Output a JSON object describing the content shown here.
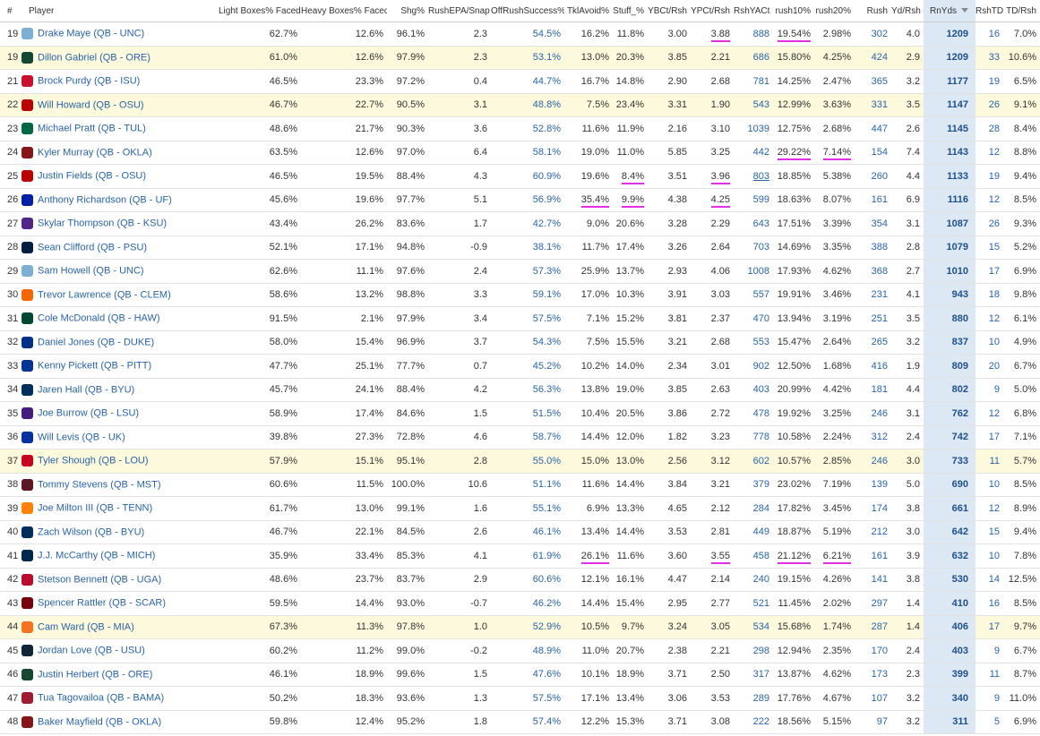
{
  "table": {
    "columns": [
      "#",
      "Player",
      "Light Boxes% Faced",
      "Heavy Boxes% Faced",
      "Shg%",
      "RushEPA/Snap",
      "OffRushSuccess%",
      "TklAvoid%",
      "Stuff_%",
      "YBCt/Rsh",
      "YPCt/Rsh",
      "RshYACt",
      "rush10%",
      "rush20%",
      "Rush",
      "Yd/Rsh",
      "RnYds",
      "RshTD",
      "TD/Rsh"
    ],
    "rows": [
      [
        "19",
        "Drake Maye (QB - UNC)",
        "62.7%",
        "12.6%",
        "96.1%",
        "2.3",
        "54.5%",
        "16.2%",
        "11.8%",
        "3.00",
        "3.88",
        "888",
        "19.54%",
        "2.98%",
        "302",
        "4.0",
        "1209",
        "16",
        "7.0%"
      ],
      [
        "19",
        "Dillon Gabriel (QB - ORE)",
        "61.0%",
        "12.6%",
        "97.9%",
        "2.3",
        "53.1%",
        "13.0%",
        "20.3%",
        "3.85",
        "2.21",
        "686",
        "15.80%",
        "4.25%",
        "424",
        "2.9",
        "1209",
        "33",
        "10.6%"
      ],
      [
        "21",
        "Brock Purdy (QB - ISU)",
        "46.5%",
        "23.3%",
        "97.2%",
        "0.4",
        "44.7%",
        "16.7%",
        "14.8%",
        "2.90",
        "2.68",
        "781",
        "14.25%",
        "2.47%",
        "365",
        "3.2",
        "1177",
        "19",
        "6.5%"
      ],
      [
        "22",
        "Will Howard (QB - OSU)",
        "46.7%",
        "22.7%",
        "90.5%",
        "3.1",
        "48.8%",
        "7.5%",
        "23.4%",
        "3.31",
        "1.90",
        "543",
        "12.99%",
        "3.63%",
        "331",
        "3.5",
        "1147",
        "26",
        "9.1%"
      ],
      [
        "23",
        "Michael Pratt (QB - TUL)",
        "48.6%",
        "21.7%",
        "90.3%",
        "3.6",
        "52.8%",
        "11.6%",
        "11.9%",
        "2.16",
        "3.10",
        "1039",
        "12.75%",
        "2.68%",
        "447",
        "2.6",
        "1145",
        "28",
        "8.4%"
      ],
      [
        "24",
        "Kyler Murray (QB - OKLA)",
        "63.5%",
        "12.6%",
        "97.0%",
        "6.4",
        "58.1%",
        "19.0%",
        "11.0%",
        "5.85",
        "3.25",
        "442",
        "29.22%",
        "7.14%",
        "154",
        "7.4",
        "1143",
        "12",
        "8.8%"
      ],
      [
        "25",
        "Justin Fields (QB - OSU)",
        "46.5%",
        "19.5%",
        "88.4%",
        "4.3",
        "60.9%",
        "19.6%",
        "8.4%",
        "3.51",
        "3.96",
        "803",
        "18.85%",
        "5.38%",
        "260",
        "4.4",
        "1133",
        "19",
        "9.4%"
      ],
      [
        "26",
        "Anthony Richardson (QB - UF)",
        "45.6%",
        "19.6%",
        "97.7%",
        "5.1",
        "56.9%",
        "35.4%",
        "9.9%",
        "4.38",
        "4.25",
        "599",
        "18.63%",
        "8.07%",
        "161",
        "6.9",
        "1116",
        "12",
        "8.5%"
      ],
      [
        "27",
        "Skylar Thompson (QB - KSU)",
        "43.4%",
        "26.2%",
        "83.6%",
        "1.7",
        "42.7%",
        "9.0%",
        "20.6%",
        "3.28",
        "2.29",
        "643",
        "17.51%",
        "3.39%",
        "354",
        "3.1",
        "1087",
        "26",
        "9.3%"
      ],
      [
        "28",
        "Sean Clifford (QB - PSU)",
        "52.1%",
        "17.1%",
        "94.8%",
        "-0.9",
        "38.1%",
        "11.7%",
        "17.4%",
        "3.26",
        "2.64",
        "703",
        "14.69%",
        "3.35%",
        "388",
        "2.8",
        "1079",
        "15",
        "5.2%"
      ],
      [
        "29",
        "Sam Howell (QB - UNC)",
        "62.6%",
        "11.1%",
        "97.6%",
        "2.4",
        "57.3%",
        "25.9%",
        "13.7%",
        "2.93",
        "4.06",
        "1008",
        "17.93%",
        "4.62%",
        "368",
        "2.7",
        "1010",
        "17",
        "6.9%"
      ],
      [
        "30",
        "Trevor Lawrence (QB - CLEM)",
        "58.6%",
        "13.2%",
        "98.8%",
        "3.3",
        "59.1%",
        "17.0%",
        "10.3%",
        "3.91",
        "3.03",
        "557",
        "19.91%",
        "3.46%",
        "231",
        "4.1",
        "943",
        "18",
        "9.8%"
      ],
      [
        "31",
        "Cole McDonald (QB - HAW)",
        "91.5%",
        "2.1%",
        "97.9%",
        "3.4",
        "57.5%",
        "7.1%",
        "15.2%",
        "3.81",
        "2.37",
        "470",
        "13.94%",
        "3.19%",
        "251",
        "3.5",
        "880",
        "12",
        "6.1%"
      ],
      [
        "32",
        "Daniel Jones (QB - DUKE)",
        "58.0%",
        "15.4%",
        "96.9%",
        "3.7",
        "54.3%",
        "7.5%",
        "15.5%",
        "3.21",
        "2.68",
        "553",
        "15.47%",
        "2.64%",
        "265",
        "3.2",
        "837",
        "10",
        "4.9%"
      ],
      [
        "33",
        "Kenny Pickett (QB - PITT)",
        "47.7%",
        "25.1%",
        "77.7%",
        "0.7",
        "45.2%",
        "10.2%",
        "14.0%",
        "2.34",
        "3.01",
        "902",
        "12.50%",
        "1.68%",
        "416",
        "1.9",
        "809",
        "20",
        "6.7%"
      ],
      [
        "34",
        "Jaren Hall (QB - BYU)",
        "45.7%",
        "24.1%",
        "88.4%",
        "4.2",
        "56.3%",
        "13.8%",
        "19.0%",
        "3.85",
        "2.63",
        "403",
        "20.99%",
        "4.42%",
        "181",
        "4.4",
        "802",
        "9",
        "5.0%"
      ],
      [
        "35",
        "Joe Burrow (QB - LSU)",
        "58.9%",
        "17.4%",
        "84.6%",
        "1.5",
        "51.5%",
        "10.4%",
        "20.5%",
        "3.86",
        "2.72",
        "478",
        "19.92%",
        "3.25%",
        "246",
        "3.1",
        "762",
        "12",
        "6.8%"
      ],
      [
        "36",
        "Will Levis (QB - UK)",
        "39.8%",
        "27.3%",
        "72.8%",
        "4.6",
        "58.7%",
        "14.4%",
        "12.0%",
        "1.82",
        "3.23",
        "778",
        "10.58%",
        "2.24%",
        "312",
        "2.4",
        "742",
        "17",
        "7.1%"
      ],
      [
        "37",
        "Tyler Shough (QB - LOU)",
        "57.9%",
        "15.1%",
        "95.1%",
        "2.8",
        "55.0%",
        "15.0%",
        "13.0%",
        "2.56",
        "3.12",
        "602",
        "10.57%",
        "2.85%",
        "246",
        "3.0",
        "733",
        "11",
        "5.7%"
      ],
      [
        "38",
        "Tommy Stevens (QB - MST)",
        "60.6%",
        "11.5%",
        "100.0%",
        "10.6",
        "51.1%",
        "11.6%",
        "14.4%",
        "3.84",
        "3.21",
        "379",
        "23.02%",
        "7.19%",
        "139",
        "5.0",
        "690",
        "10",
        "8.5%"
      ],
      [
        "39",
        "Joe Milton III (QB - TENN)",
        "61.7%",
        "13.0%",
        "99.1%",
        "1.6",
        "55.1%",
        "6.9%",
        "13.3%",
        "4.65",
        "2.12",
        "284",
        "17.82%",
        "3.45%",
        "174",
        "3.8",
        "661",
        "12",
        "8.9%"
      ],
      [
        "40",
        "Zach Wilson (QB - BYU)",
        "46.7%",
        "22.1%",
        "84.5%",
        "2.6",
        "46.1%",
        "13.4%",
        "14.4%",
        "3.53",
        "2.81",
        "449",
        "18.87%",
        "5.19%",
        "212",
        "3.0",
        "642",
        "15",
        "9.4%"
      ],
      [
        "41",
        "J.J. McCarthy (QB - MICH)",
        "35.9%",
        "33.4%",
        "85.3%",
        "4.1",
        "61.9%",
        "26.1%",
        "11.6%",
        "3.60",
        "3.55",
        "458",
        "21.12%",
        "6.21%",
        "161",
        "3.9",
        "632",
        "10",
        "7.8%"
      ],
      [
        "42",
        "Stetson Bennett (QB - UGA)",
        "48.6%",
        "23.7%",
        "83.7%",
        "2.9",
        "60.6%",
        "12.1%",
        "16.1%",
        "4.47",
        "2.14",
        "240",
        "19.15%",
        "4.26%",
        "141",
        "3.8",
        "530",
        "14",
        "12.5%"
      ],
      [
        "43",
        "Spencer Rattler (QB - SCAR)",
        "59.5%",
        "14.4%",
        "93.0%",
        "-0.7",
        "46.2%",
        "14.4%",
        "15.4%",
        "2.95",
        "2.77",
        "521",
        "11.45%",
        "2.02%",
        "297",
        "1.4",
        "410",
        "16",
        "8.5%"
      ],
      [
        "44",
        "Cam Ward (QB - MIA)",
        "67.3%",
        "11.3%",
        "97.8%",
        "1.0",
        "52.9%",
        "10.5%",
        "9.7%",
        "3.24",
        "3.05",
        "534",
        "15.68%",
        "1.74%",
        "287",
        "1.4",
        "406",
        "17",
        "9.7%"
      ],
      [
        "45",
        "Jordan Love (QB - USU)",
        "60.2%",
        "11.2%",
        "99.0%",
        "-0.2",
        "48.9%",
        "11.0%",
        "20.7%",
        "2.38",
        "2.21",
        "298",
        "12.94%",
        "2.35%",
        "170",
        "2.4",
        "403",
        "9",
        "6.7%"
      ],
      [
        "46",
        "Justin Herbert (QB - ORE)",
        "46.1%",
        "18.9%",
        "99.6%",
        "1.5",
        "47.6%",
        "10.1%",
        "18.9%",
        "3.71",
        "2.50",
        "317",
        "13.87%",
        "4.62%",
        "173",
        "2.3",
        "399",
        "11",
        "8.7%"
      ],
      [
        "47",
        "Tua Tagovailoa (QB - BAMA)",
        "50.2%",
        "18.3%",
        "93.6%",
        "1.3",
        "57.5%",
        "17.1%",
        "13.4%",
        "3.06",
        "3.53",
        "289",
        "17.76%",
        "4.67%",
        "107",
        "3.2",
        "340",
        "9",
        "11.0%"
      ],
      [
        "48",
        "Baker Mayfield (QB - OKLA)",
        "59.8%",
        "12.4%",
        "95.2%",
        "1.8",
        "57.4%",
        "12.2%",
        "15.3%",
        "3.71",
        "3.08",
        "222",
        "18.56%",
        "5.15%",
        "97",
        "3.2",
        "311",
        "5",
        "6.9%"
      ]
    ]
  }
}
